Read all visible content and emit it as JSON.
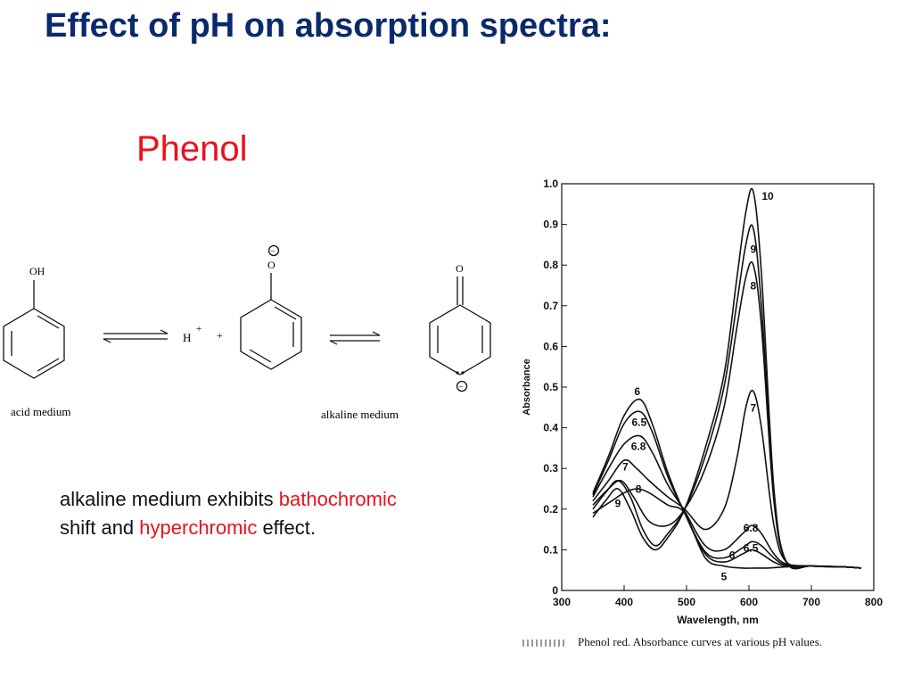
{
  "slide": {
    "title": "Effect of pH on absorption spectra:",
    "subtitle": "Phenol"
  },
  "reaction": {
    "oh_label": "OH",
    "h_label": "H",
    "plus_superscript": "+",
    "plus_sign": "+",
    "phenoxide_charge": "−",
    "phenoxide_o": "O",
    "quinone_o": "O",
    "carbanion_charge": "−",
    "acid_label": "acid medium",
    "alkaline_label": "alkaline medium"
  },
  "text": {
    "part1": "alkaline medium exhibits ",
    "bathochromic": "bathochromic",
    "part2": "shift and ",
    "hyperchromic": "hyperchromic",
    "part3": " effect."
  },
  "colors": {
    "title": "#0b2a6b",
    "accent": "#e8121b"
  },
  "chart_data": {
    "type": "line",
    "title": "",
    "xlabel": "Wavelength, nm",
    "ylabel": "Absorbance",
    "xlim": [
      300,
      800
    ],
    "ylim": [
      0,
      1.0
    ],
    "xticks": [
      300,
      400,
      500,
      600,
      700,
      800
    ],
    "yticks": [
      0,
      0.1,
      0.2,
      0.3,
      0.4,
      0.5,
      0.6,
      0.7,
      0.8,
      0.9,
      1.0
    ],
    "grid": false,
    "series": [
      {
        "name": "5",
        "x": [
          350,
          380,
          400,
          420,
          440,
          470,
          497,
          530,
          560,
          590,
          610,
          630,
          660,
          700,
          750,
          780
        ],
        "y": [
          0.19,
          0.22,
          0.24,
          0.25,
          0.24,
          0.21,
          0.19,
          0.08,
          0.06,
          0.055,
          0.055,
          0.055,
          0.058,
          0.06,
          0.058,
          0.055
        ]
      },
      {
        "name": "6",
        "x": [
          350,
          375,
          400,
          425,
          445,
          470,
          497,
          530,
          560,
          590,
          605,
          620,
          640,
          660,
          700,
          750,
          780
        ],
        "y": [
          0.24,
          0.33,
          0.43,
          0.47,
          0.41,
          0.29,
          0.19,
          0.09,
          0.07,
          0.09,
          0.1,
          0.09,
          0.07,
          0.06,
          0.06,
          0.058,
          0.055
        ]
      },
      {
        "name": "6.5",
        "x": [
          350,
          375,
          400,
          425,
          445,
          470,
          497,
          530,
          560,
          590,
          605,
          620,
          640,
          660,
          700,
          750,
          780
        ],
        "y": [
          0.235,
          0.32,
          0.41,
          0.44,
          0.39,
          0.28,
          0.19,
          0.095,
          0.08,
          0.105,
          0.12,
          0.11,
          0.08,
          0.062,
          0.06,
          0.058,
          0.055
        ]
      },
      {
        "name": "6.8",
        "x": [
          350,
          375,
          400,
          425,
          445,
          470,
          497,
          530,
          560,
          590,
          605,
          620,
          640,
          660,
          700,
          750,
          780
        ],
        "y": [
          0.23,
          0.3,
          0.36,
          0.38,
          0.34,
          0.26,
          0.195,
          0.11,
          0.1,
          0.14,
          0.16,
          0.14,
          0.09,
          0.065,
          0.06,
          0.058,
          0.055
        ]
      },
      {
        "name": "7",
        "x": [
          350,
          375,
          400,
          420,
          440,
          470,
          497,
          530,
          560,
          580,
          595,
          607,
          620,
          640,
          660,
          700,
          750,
          780
        ],
        "y": [
          0.22,
          0.27,
          0.32,
          0.3,
          0.27,
          0.23,
          0.2,
          0.15,
          0.2,
          0.32,
          0.45,
          0.49,
          0.4,
          0.16,
          0.07,
          0.06,
          0.058,
          0.055
        ]
      },
      {
        "name": "8",
        "x": [
          350,
          375,
          395,
          415,
          440,
          470,
          497,
          530,
          560,
          580,
          595,
          607,
          620,
          640,
          660,
          700,
          750,
          780
        ],
        "y": [
          0.21,
          0.25,
          0.27,
          0.23,
          0.17,
          0.16,
          0.2,
          0.3,
          0.45,
          0.64,
          0.77,
          0.8,
          0.65,
          0.22,
          0.07,
          0.06,
          0.058,
          0.055
        ]
      },
      {
        "name": "9",
        "x": [
          350,
          370,
          390,
          410,
          430,
          450,
          470,
          497,
          530,
          560,
          580,
          595,
          607,
          620,
          640,
          660,
          700,
          750,
          780
        ],
        "y": [
          0.2,
          0.24,
          0.27,
          0.23,
          0.15,
          0.11,
          0.14,
          0.2,
          0.33,
          0.5,
          0.7,
          0.85,
          0.89,
          0.7,
          0.23,
          0.07,
          0.06,
          0.058,
          0.055
        ]
      },
      {
        "name": "10",
        "x": [
          350,
          370,
          390,
          410,
          430,
          450,
          470,
          497,
          530,
          560,
          580,
          595,
          607,
          620,
          640,
          660,
          700,
          750,
          780
        ],
        "y": [
          0.18,
          0.22,
          0.25,
          0.2,
          0.13,
          0.1,
          0.13,
          0.2,
          0.35,
          0.53,
          0.76,
          0.93,
          0.98,
          0.78,
          0.25,
          0.07,
          0.06,
          0.058,
          0.055
        ]
      }
    ],
    "caption": "Phenol red.   Absorbance curves at various pH values."
  }
}
